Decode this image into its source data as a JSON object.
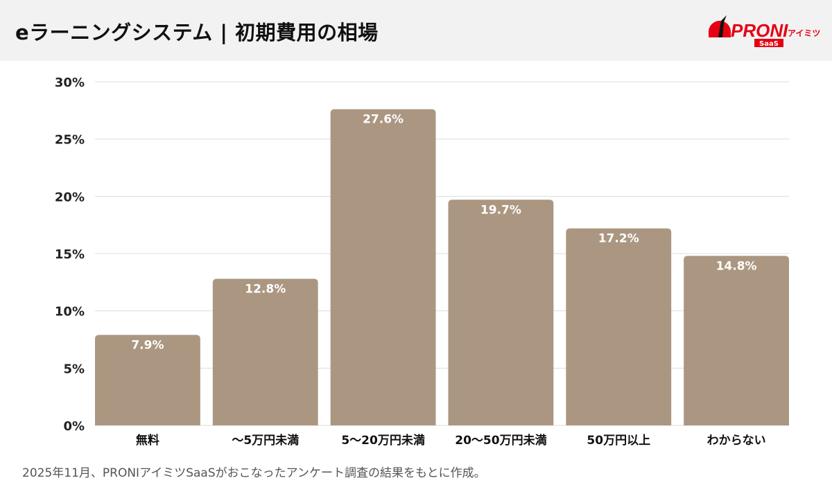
{
  "header": {
    "title": "eラーニングシステム | 初期費用の相場"
  },
  "logo": {
    "text": "PRONI",
    "suffix": "アイミツ",
    "badge": "SaaS",
    "color": "#e60012"
  },
  "chart_data": {
    "type": "bar",
    "categories": [
      "無料",
      "〜5万円未満",
      "5〜20万円未満",
      "20〜50万円未満",
      "50万円以上",
      "わからない"
    ],
    "values": [
      7.9,
      12.8,
      27.6,
      19.7,
      17.2,
      14.8
    ],
    "data_labels": [
      "7.9%",
      "12.8%",
      "27.6%",
      "19.7%",
      "17.2%",
      "14.8%"
    ],
    "ylim": [
      0,
      30
    ],
    "yticks": [
      0,
      5,
      10,
      15,
      20,
      25,
      30
    ],
    "ytick_labels": [
      "0%",
      "5%",
      "10%",
      "15%",
      "20%",
      "25%",
      "30%"
    ],
    "grid": true,
    "bar_color": "#ab9781"
  },
  "footer": {
    "note": "2025年11月、PRONIアイミツSaaSがおこなったアンケート調査の結果をもとに作成。"
  }
}
